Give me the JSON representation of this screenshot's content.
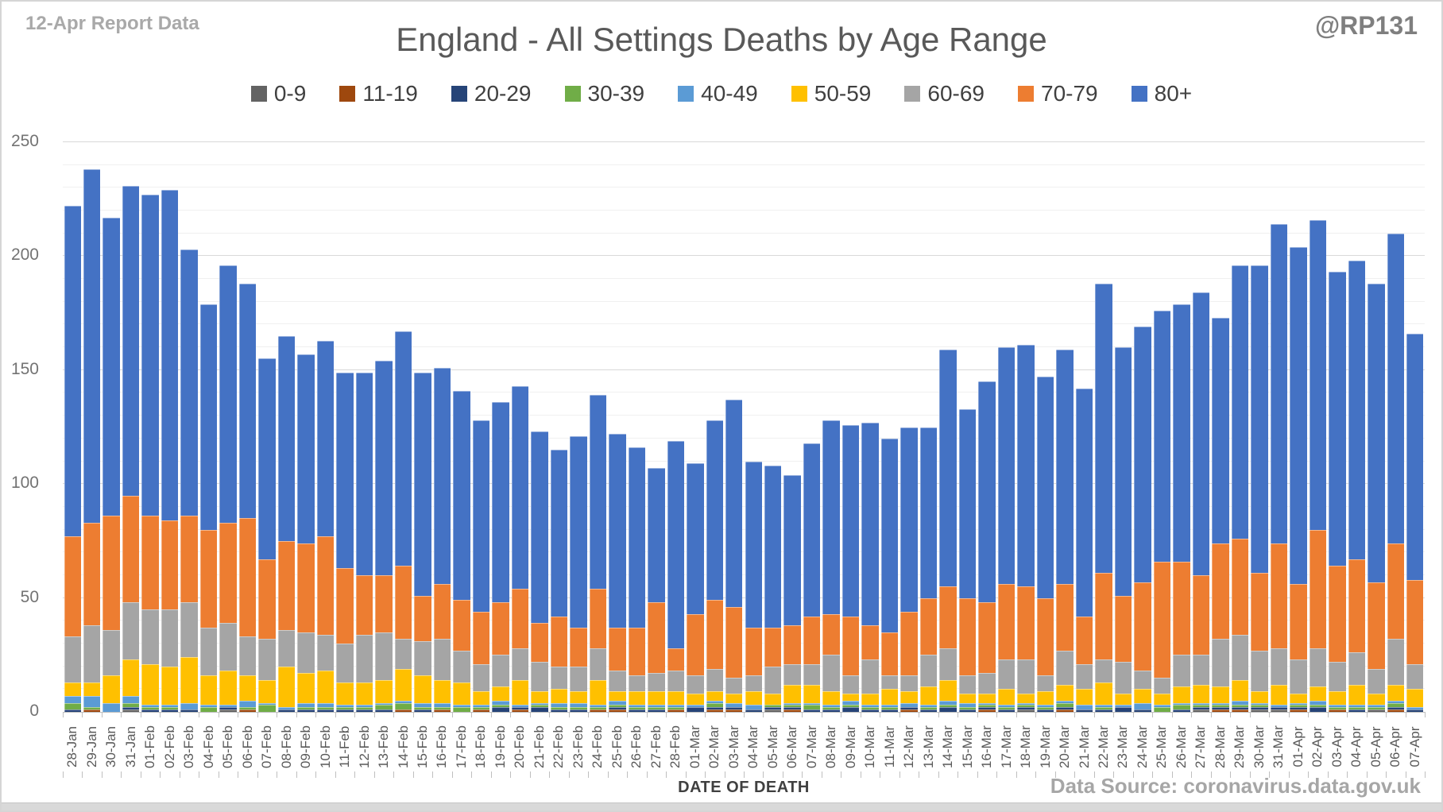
{
  "header": {
    "report_label": "12-Apr Report Data",
    "handle": "@RP131"
  },
  "title": "England - All Settings Deaths by Age Range",
  "xaxis_title": "DATE OF DEATH",
  "data_source": "Data Source: coronavirus.data.gov.uk",
  "chart_data": {
    "type": "bar",
    "stacked": true,
    "title": "England - All Settings Deaths by Age Range",
    "xlabel": "DATE OF DEATH",
    "ylabel": "",
    "ylim": [
      0,
      250
    ],
    "yticks": [
      0,
      50,
      100,
      150,
      200,
      250
    ],
    "minor_grid_interval": 10,
    "grid": true,
    "legend_position": "top",
    "categories": [
      "28-Jan",
      "29-Jan",
      "30-Jan",
      "31-Jan",
      "01-Feb",
      "02-Feb",
      "03-Feb",
      "04-Feb",
      "05-Feb",
      "06-Feb",
      "07-Feb",
      "08-Feb",
      "09-Feb",
      "10-Feb",
      "11-Feb",
      "12-Feb",
      "13-Feb",
      "14-Feb",
      "15-Feb",
      "16-Feb",
      "17-Feb",
      "18-Feb",
      "19-Feb",
      "20-Feb",
      "21-Feb",
      "22-Feb",
      "23-Feb",
      "24-Feb",
      "25-Feb",
      "26-Feb",
      "27-Feb",
      "28-Feb",
      "01-Mar",
      "02-Mar",
      "03-Mar",
      "04-Mar",
      "05-Mar",
      "06-Mar",
      "07-Mar",
      "08-Mar",
      "09-Mar",
      "10-Mar",
      "11-Mar",
      "12-Mar",
      "13-Mar",
      "14-Mar",
      "15-Mar",
      "16-Mar",
      "17-Mar",
      "18-Mar",
      "19-Mar",
      "20-Mar",
      "21-Mar",
      "22-Mar",
      "23-Mar",
      "24-Mar",
      "25-Mar",
      "26-Mar",
      "27-Mar",
      "28-Mar",
      "29-Mar",
      "30-Mar",
      "31-Mar",
      "01-Apr",
      "02-Apr",
      "03-Apr",
      "04-Apr",
      "05-Apr",
      "06-Apr",
      "07-Apr"
    ],
    "series": [
      {
        "name": "0-9",
        "color": "#636363",
        "values": [
          0,
          0,
          0,
          1,
          0,
          0,
          0,
          0,
          1,
          0,
          0,
          0,
          0,
          0,
          0,
          0,
          0,
          0,
          0,
          0,
          0,
          0,
          0,
          0,
          0,
          0,
          0,
          0,
          0,
          0,
          0,
          0,
          0,
          0,
          0,
          0,
          1,
          0,
          0,
          0,
          0,
          0,
          0,
          0,
          0,
          0,
          0,
          0,
          0,
          1,
          0,
          0,
          0,
          0,
          0,
          0,
          0,
          0,
          1,
          0,
          0,
          1,
          1,
          0,
          0,
          0,
          0,
          1,
          0,
          0
        ]
      },
      {
        "name": "11-19",
        "color": "#9e480e",
        "values": [
          0,
          1,
          0,
          0,
          0,
          0,
          0,
          0,
          0,
          1,
          0,
          0,
          0,
          0,
          0,
          0,
          0,
          1,
          0,
          1,
          0,
          1,
          0,
          1,
          0,
          0,
          0,
          1,
          1,
          0,
          0,
          1,
          0,
          1,
          1,
          0,
          0,
          1,
          0,
          0,
          0,
          0,
          0,
          1,
          0,
          0,
          0,
          1,
          0,
          0,
          0,
          1,
          0,
          0,
          0,
          0,
          0,
          0,
          0,
          1,
          1,
          0,
          0,
          1,
          0,
          1,
          0,
          0,
          1,
          0
        ]
      },
      {
        "name": "20-29",
        "color": "#264478",
        "values": [
          1,
          0,
          0,
          1,
          1,
          1,
          1,
          0,
          1,
          0,
          0,
          1,
          1,
          1,
          1,
          1,
          1,
          0,
          1,
          0,
          0,
          0,
          2,
          1,
          2,
          1,
          1,
          0,
          1,
          1,
          1,
          0,
          2,
          1,
          1,
          1,
          1,
          1,
          1,
          1,
          2,
          1,
          1,
          1,
          1,
          2,
          1,
          1,
          1,
          1,
          1,
          1,
          1,
          1,
          2,
          1,
          0,
          1,
          1,
          1,
          1,
          1,
          1,
          1,
          2,
          0,
          1,
          0,
          1,
          1
        ]
      },
      {
        "name": "30-39",
        "color": "#70ad47",
        "values": [
          3,
          1,
          0,
          2,
          1,
          1,
          0,
          2,
          0,
          1,
          3,
          0,
          1,
          1,
          1,
          1,
          2,
          3,
          1,
          1,
          2,
          1,
          1,
          0,
          1,
          1,
          1,
          1,
          1,
          1,
          1,
          1,
          0,
          2,
          0,
          0,
          1,
          1,
          2,
          1,
          1,
          1,
          1,
          0,
          1,
          1,
          1,
          1,
          1,
          1,
          1,
          2,
          0,
          1,
          0,
          0,
          2,
          2,
          1,
          1,
          1,
          1,
          0,
          1,
          1,
          1,
          1,
          1,
          2,
          0
        ]
      },
      {
        "name": "40-49",
        "color": "#5b9bd5",
        "values": [
          3,
          5,
          4,
          3,
          1,
          1,
          3,
          1,
          1,
          3,
          1,
          1,
          2,
          2,
          1,
          1,
          1,
          1,
          2,
          2,
          1,
          1,
          2,
          1,
          1,
          2,
          2,
          1,
          2,
          1,
          1,
          1,
          1,
          1,
          2,
          2,
          0,
          1,
          1,
          1,
          2,
          1,
          1,
          2,
          1,
          2,
          2,
          1,
          1,
          1,
          1,
          1,
          2,
          1,
          1,
          3,
          1,
          1,
          1,
          1,
          2,
          1,
          1,
          1,
          2,
          1,
          1,
          1,
          1,
          1
        ]
      },
      {
        "name": "50-59",
        "color": "#ffc000",
        "values": [
          6,
          6,
          12,
          16,
          18,
          17,
          20,
          13,
          15,
          11,
          10,
          18,
          13,
          14,
          10,
          10,
          10,
          14,
          12,
          10,
          10,
          6,
          6,
          11,
          5,
          6,
          5,
          11,
          4,
          6,
          6,
          6,
          5,
          4,
          4,
          6,
          5,
          8,
          8,
          6,
          3,
          5,
          7,
          5,
          8,
          9,
          4,
          4,
          7,
          4,
          6,
          7,
          7,
          10,
          5,
          6,
          5,
          7,
          8,
          7,
          9,
          5,
          9,
          4,
          6,
          6,
          9,
          5,
          7,
          8
        ]
      },
      {
        "name": "60-69",
        "color": "#a5a5a5",
        "values": [
          20,
          25,
          20,
          25,
          24,
          25,
          24,
          21,
          21,
          17,
          18,
          16,
          18,
          16,
          17,
          21,
          21,
          13,
          15,
          18,
          14,
          12,
          14,
          14,
          13,
          10,
          11,
          14,
          9,
          7,
          8,
          9,
          8,
          10,
          7,
          7,
          12,
          9,
          9,
          16,
          8,
          15,
          6,
          7,
          14,
          14,
          8,
          9,
          13,
          15,
          7,
          15,
          11,
          10,
          14,
          8,
          7,
          14,
          13,
          21,
          20,
          18,
          16,
          15,
          17,
          13,
          14,
          11,
          20,
          11
        ]
      },
      {
        "name": "70-79",
        "color": "#ed7d31",
        "values": [
          44,
          45,
          50,
          47,
          41,
          39,
          38,
          43,
          44,
          52,
          35,
          39,
          39,
          43,
          33,
          26,
          25,
          32,
          20,
          24,
          22,
          23,
          23,
          26,
          17,
          22,
          17,
          26,
          19,
          21,
          31,
          10,
          27,
          30,
          31,
          21,
          17,
          17,
          21,
          18,
          26,
          15,
          19,
          28,
          25,
          27,
          34,
          31,
          33,
          32,
          34,
          29,
          21,
          38,
          29,
          39,
          51,
          41,
          35,
          42,
          42,
          34,
          46,
          33,
          52,
          42,
          41,
          38,
          42,
          37
        ]
      },
      {
        "name": "80+",
        "color": "#4472c4",
        "values": [
          145,
          155,
          131,
          136,
          141,
          145,
          117,
          99,
          113,
          103,
          88,
          90,
          83,
          86,
          86,
          89,
          94,
          103,
          98,
          95,
          92,
          84,
          88,
          89,
          84,
          73,
          84,
          85,
          85,
          79,
          59,
          91,
          66,
          79,
          91,
          73,
          71,
          66,
          76,
          85,
          84,
          89,
          85,
          81,
          75,
          104,
          83,
          97,
          104,
          106,
          97,
          103,
          100,
          127,
          109,
          112,
          110,
          113,
          124,
          99,
          120,
          135,
          140,
          148,
          136,
          129,
          131,
          131,
          136,
          108
        ]
      }
    ]
  }
}
